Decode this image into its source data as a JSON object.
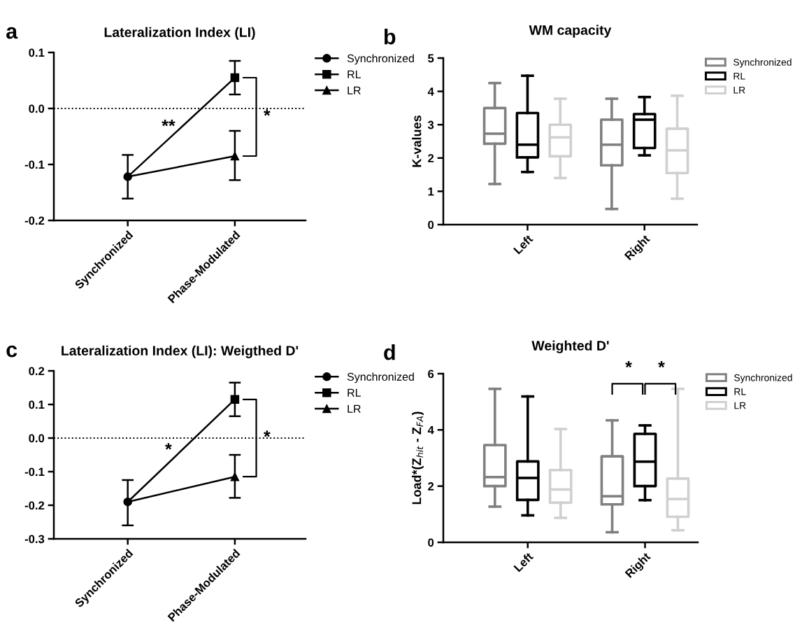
{
  "chart_data": [
    {
      "type": "line",
      "title": "Lateralization Index (LI)",
      "categories": [
        "Synchronized",
        "Phase-Modulated"
      ],
      "line_style": "solid",
      "legend": "right",
      "series": [
        {
          "name": "Synchronized",
          "color": "#000000",
          "marker": "circle",
          "values": [
            -0.122,
            null
          ],
          "errors": [
            [
              -0.161,
              -0.083
            ],
            null
          ]
        },
        {
          "name": "RL",
          "color": "#000000",
          "marker": "square",
          "values": [
            -0.122,
            0.055
          ],
          "errors": [
            null,
            [
              0.025,
              0.085
            ]
          ]
        },
        {
          "name": "LR",
          "color": "#000000",
          "marker": "triangle",
          "values": [
            -0.122,
            -0.085
          ],
          "errors": [
            null,
            [
              -0.128,
              -0.04
            ]
          ]
        }
      ],
      "ylim": [
        -0.2,
        0.1
      ],
      "yticks": [
        {
          "value": -0.2,
          "label": "-0.2"
        },
        {
          "value": -0.1,
          "label": "-0.1"
        },
        {
          "value": 0.0,
          "label": "0.0"
        },
        {
          "value": 0.1,
          "label": "0.1"
        }
      ],
      "ref_lines": [
        {
          "axis": "y",
          "value": 0,
          "line_style": "dotted",
          "color": "#000000"
        }
      ],
      "annotations": [
        "a",
        "**",
        "*"
      ]
    },
    {
      "type": "box",
      "title": "WM capacity",
      "ylabel": "K-values",
      "categories": [
        "Left",
        "Right"
      ],
      "legend": "right",
      "series": [
        {
          "name": "Synchronized",
          "color": "#808080",
          "boxes": [
            {
              "low": 1.22,
              "q1": 2.43,
              "median": 2.73,
              "q3": 3.5,
              "high": 4.25
            },
            {
              "low": 0.47,
              "q1": 1.78,
              "median": 2.4,
              "q3": 3.15,
              "high": 3.78
            }
          ]
        },
        {
          "name": "RL",
          "color": "#000000",
          "boxes": [
            {
              "low": 1.58,
              "q1": 2.02,
              "median": 2.4,
              "q3": 3.35,
              "high": 4.47
            },
            {
              "low": 2.08,
              "q1": 2.3,
              "median": 3.15,
              "q3": 3.32,
              "high": 3.83
            }
          ]
        },
        {
          "name": "LR",
          "color": "#d0d0d0",
          "boxes": [
            {
              "low": 1.4,
              "q1": 2.05,
              "median": 2.62,
              "q3": 3.0,
              "high": 3.78
            },
            {
              "low": 0.78,
              "q1": 1.55,
              "median": 2.23,
              "q3": 2.88,
              "high": 3.87
            }
          ]
        }
      ],
      "ylim": [
        0,
        5
      ],
      "yticks": [
        0,
        1,
        2,
        3,
        4,
        5
      ],
      "annotations": [
        "b"
      ]
    },
    {
      "type": "line",
      "title": "Lateralization Index (LI): Weigthed D'",
      "categories": [
        "Synchronized",
        "Phase-Modulated"
      ],
      "line_style": "solid",
      "legend": "right",
      "series": [
        {
          "name": "Synchronized",
          "color": "#000000",
          "marker": "circle",
          "values": [
            -0.19,
            null
          ],
          "errors": [
            [
              -0.26,
              -0.125
            ],
            null
          ]
        },
        {
          "name": "RL",
          "color": "#000000",
          "marker": "square",
          "values": [
            -0.19,
            0.115
          ],
          "errors": [
            null,
            [
              0.065,
              0.165
            ]
          ]
        },
        {
          "name": "LR",
          "color": "#000000",
          "marker": "triangle",
          "values": [
            -0.19,
            -0.115
          ],
          "errors": [
            null,
            [
              -0.178,
              -0.05
            ]
          ]
        }
      ],
      "ylim": [
        -0.3,
        0.2
      ],
      "yticks": [
        {
          "value": -0.3,
          "label": "-0.3"
        },
        {
          "value": -0.2,
          "label": "-0.2"
        },
        {
          "value": -0.1,
          "label": "-0.1"
        },
        {
          "value": 0.0,
          "label": "0.0"
        },
        {
          "value": 0.1,
          "label": "0.1"
        },
        {
          "value": 0.2,
          "label": "0.2"
        }
      ],
      "ref_lines": [
        {
          "axis": "y",
          "value": 0,
          "line_style": "dotted",
          "color": "#000000"
        }
      ],
      "annotations": [
        "c",
        "*",
        "*"
      ]
    },
    {
      "type": "box",
      "title": "Weighted D'",
      "ylabel": "Load*(Z$_{hit}$ - Z$_{FA}$)",
      "categories": [
        "Left",
        "Right"
      ],
      "legend": "right",
      "series": [
        {
          "name": "Synchronized",
          "color": "#808080",
          "boxes": [
            {
              "low": 1.27,
              "q1": 2.0,
              "median": 2.32,
              "q3": 3.46,
              "high": 5.46
            },
            {
              "low": 0.36,
              "q1": 1.35,
              "median": 1.64,
              "q3": 3.06,
              "high": 4.34
            }
          ]
        },
        {
          "name": "RL",
          "color": "#000000",
          "boxes": [
            {
              "low": 0.96,
              "q1": 1.51,
              "median": 2.29,
              "q3": 2.88,
              "high": 5.19
            },
            {
              "low": 1.5,
              "q1": 2.0,
              "median": 2.87,
              "q3": 3.86,
              "high": 4.16
            }
          ]
        },
        {
          "name": "LR",
          "color": "#d0d0d0",
          "boxes": [
            {
              "low": 0.87,
              "q1": 1.41,
              "median": 1.88,
              "q3": 2.57,
              "high": 4.03
            },
            {
              "low": 0.43,
              "q1": 0.91,
              "median": 1.54,
              "q3": 2.27,
              "high": 5.46
            }
          ]
        }
      ],
      "ylim": [
        0,
        6
      ],
      "yticks": [
        0,
        2,
        4,
        6
      ],
      "annotations": [
        "d",
        "*",
        "*"
      ]
    }
  ]
}
